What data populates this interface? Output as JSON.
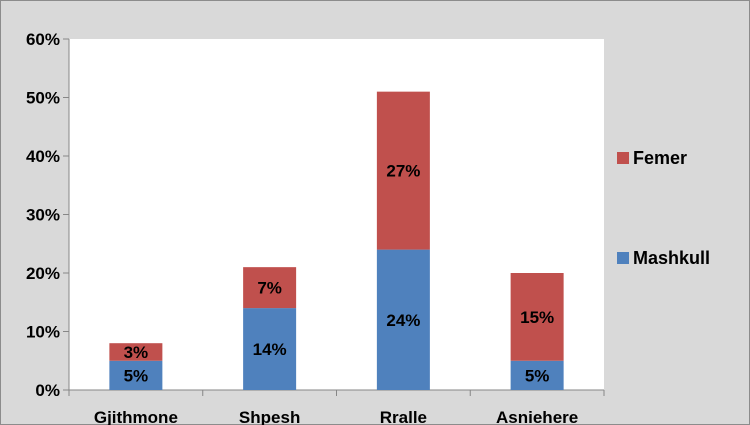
{
  "chart_data": {
    "type": "bar",
    "stacked": true,
    "categories": [
      "Gjithmone",
      "Shpesh",
      "Rralle",
      "Asniehere"
    ],
    "series": [
      {
        "name": "Mashkull",
        "values": [
          5,
          14,
          24,
          5
        ],
        "color": "#4f81bd",
        "labels": [
          "5%",
          "14%",
          "24%",
          "5%"
        ]
      },
      {
        "name": "Femer",
        "values": [
          3,
          7,
          27,
          15
        ],
        "color": "#c0504d",
        "labels": [
          "3%",
          "7%",
          "27%",
          "15%"
        ]
      }
    ],
    "ylim": [
      0,
      60
    ],
    "yticks": [
      0,
      10,
      20,
      30,
      40,
      50,
      60
    ],
    "ytick_labels": [
      "0%",
      "10%",
      "20%",
      "30%",
      "40%",
      "50%",
      "60%"
    ],
    "legend_position": "right",
    "legend_order": [
      "Femer",
      "Mashkull"
    ],
    "grid": false,
    "plot_background": "#ffffff",
    "chart_background": "#d9d9d9"
  }
}
